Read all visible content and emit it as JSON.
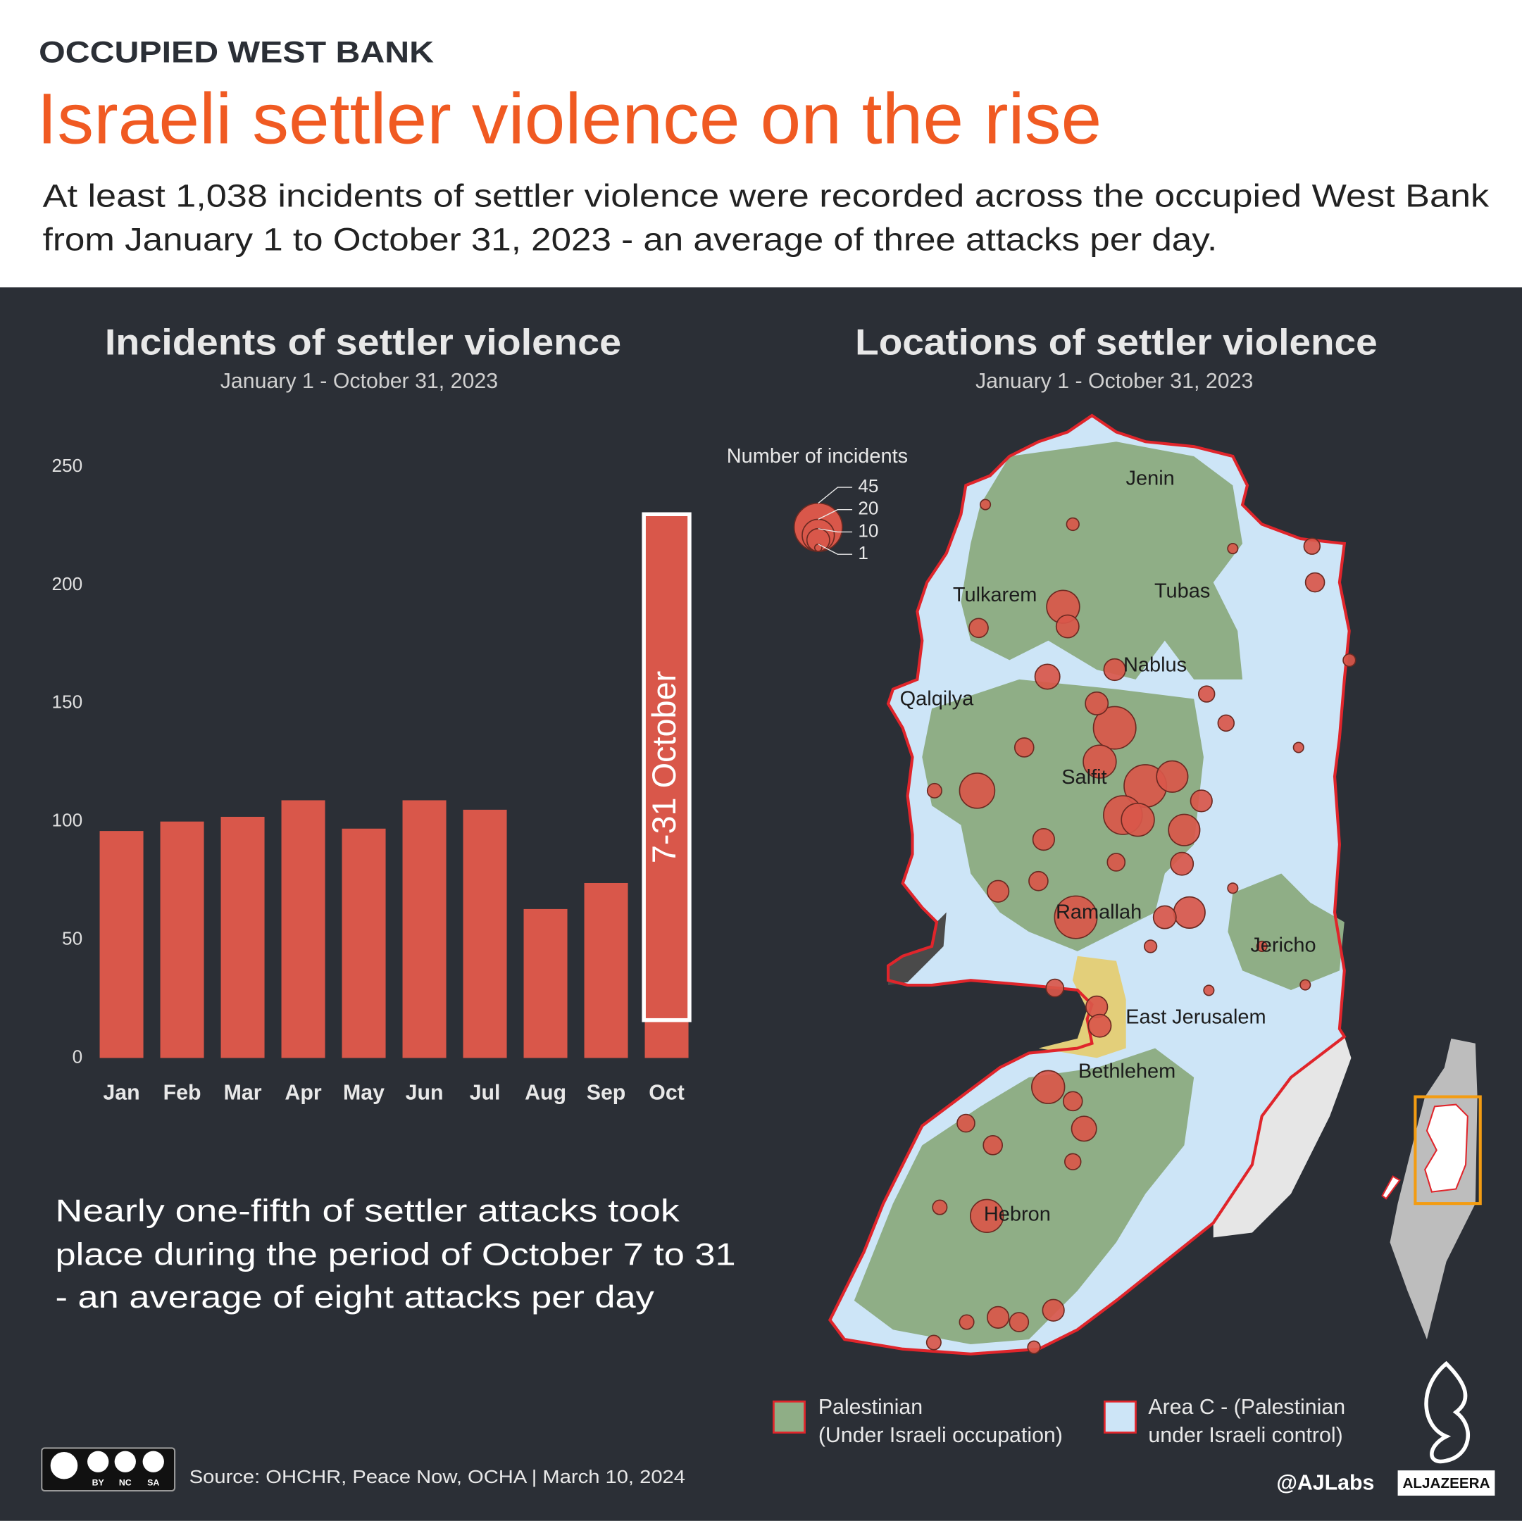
{
  "header": {
    "kicker": "OCCUPIED WEST BANK",
    "title": "Israeli settler violence on the rise",
    "subtitle": [
      "At least 1,038 incidents of settler violence were recorded across the occupied West Bank",
      "from January 1 to October 31, 2023 - an average of three attacks per day."
    ]
  },
  "chart_data": [
    {
      "type": "bar",
      "title": "Incidents of settler violence",
      "subtitle": "January 1 - October 31,  2023",
      "categories": [
        "Jan",
        "Feb",
        "Mar",
        "Apr",
        "May",
        "Jun",
        "Jul",
        "Aug",
        "Sep",
        "Oct"
      ],
      "values": [
        96,
        100,
        102,
        109,
        97,
        109,
        105,
        63,
        74,
        230
      ],
      "color": "#d9574a",
      "ylim": [
        0,
        250
      ],
      "yticks": [
        0,
        50,
        100,
        150,
        200,
        250
      ],
      "grid": false,
      "annotation": {
        "text": "7-31 October",
        "range": [
          16,
          230
        ]
      }
    },
    {
      "type": "map",
      "title": "Locations of settler violence",
      "subtitle": "January 1 - October 31,  2023",
      "color": "#d9574a",
      "size_legend": {
        "title": "Number of incidents",
        "values": [
          45,
          20,
          10,
          1
        ]
      },
      "cities": [
        "Jenin",
        "Tubas",
        "Tulkarem",
        "Nablus",
        "Qalqilya",
        "Salfit",
        "Ramallah",
        "Jericho",
        "East Jerusalem",
        "Bethlehem",
        "Hebron"
      ],
      "bubbles": [
        {
          "lon": 35.261,
          "lat": 32.159,
          "value": 35
        },
        {
          "lon": 35.241,
          "lat": 32.116,
          "value": 21
        },
        {
          "lon": 35.192,
          "lat": 32.313,
          "value": 21
        },
        {
          "lon": 35.198,
          "lat": 32.288,
          "value": 10
        },
        {
          "lon": 35.077,
          "lat": 32.079,
          "value": 24
        },
        {
          "lon": 35.302,
          "lat": 32.085,
          "value": 35
        },
        {
          "lon": 35.338,
          "lat": 32.097,
          "value": 19
        },
        {
          "lon": 35.272,
          "lat": 32.048,
          "value": 29
        },
        {
          "lon": 35.292,
          "lat": 32.042,
          "value": 21
        },
        {
          "lon": 35.354,
          "lat": 32.029,
          "value": 19
        },
        {
          "lon": 35.237,
          "lat": 32.19,
          "value": 10
        },
        {
          "lon": 35.261,
          "lat": 32.233,
          "value": 9
        },
        {
          "lon": 35.171,
          "lat": 32.224,
          "value": 12
        },
        {
          "lon": 35.209,
          "lat": 31.918,
          "value": 35
        },
        {
          "lon": 35.361,
          "lat": 31.924,
          "value": 19
        },
        {
          "lon": 35.328,
          "lat": 31.918,
          "value": 10
        },
        {
          "lon": 35.166,
          "lat": 32.017,
          "value": 9
        },
        {
          "lon": 35.159,
          "lat": 31.964,
          "value": 7
        },
        {
          "lon": 35.105,
          "lat": 31.951,
          "value": 9
        },
        {
          "lon": 35.14,
          "lat": 32.134,
          "value": 7
        },
        {
          "lon": 35.351,
          "lat": 31.986,
          "value": 10
        },
        {
          "lon": 35.377,
          "lat": 32.066,
          "value": 9
        },
        {
          "lon": 35.237,
          "lat": 31.804,
          "value": 9
        },
        {
          "lon": 35.241,
          "lat": 31.78,
          "value": 10
        },
        {
          "lon": 35.172,
          "lat": 31.702,
          "value": 21
        },
        {
          "lon": 35.22,
          "lat": 31.649,
          "value": 12
        },
        {
          "lon": 35.09,
          "lat": 31.538,
          "value": 21
        },
        {
          "lon": 35.098,
          "lat": 31.628,
          "value": 7
        },
        {
          "lon": 35.105,
          "lat": 31.409,
          "value": 9
        },
        {
          "lon": 35.133,
          "lat": 31.403,
          "value": 7
        },
        {
          "lon": 35.179,
          "lat": 31.418,
          "value": 9
        },
        {
          "lon": 35.079,
          "lat": 32.286,
          "value": 7
        },
        {
          "lon": 35.263,
          "lat": 31.988,
          "value": 6
        },
        {
          "lon": 35.41,
          "lat": 32.165,
          "value": 5
        },
        {
          "lon": 35.384,
          "lat": 32.202,
          "value": 5
        },
        {
          "lon": 35.529,
          "lat": 32.344,
          "value": 7
        },
        {
          "lon": 35.525,
          "lat": 32.39,
          "value": 5
        },
        {
          "lon": 35.181,
          "lat": 31.828,
          "value": 6
        },
        {
          "lon": 35.205,
          "lat": 31.684,
          "value": 7
        },
        {
          "lon": 35.062,
          "lat": 31.656,
          "value": 6
        },
        {
          "lon": 35.205,
          "lat": 31.607,
          "value": 5
        },
        {
          "lon": 35.027,
          "lat": 31.549,
          "value": 4
        },
        {
          "lon": 35.019,
          "lat": 31.377,
          "value": 4
        },
        {
          "lon": 35.063,
          "lat": 31.403,
          "value": 4
        },
        {
          "lon": 35.153,
          "lat": 31.371,
          "value": 3
        },
        {
          "lon": 35.419,
          "lat": 32.387,
          "value": 2
        },
        {
          "lon": 35.458,
          "lat": 31.881,
          "value": 2
        },
        {
          "lon": 35.516,
          "lat": 31.832,
          "value": 2
        },
        {
          "lon": 35.387,
          "lat": 31.825,
          "value": 2
        },
        {
          "lon": 35.419,
          "lat": 31.955,
          "value": 2
        },
        {
          "lon": 35.575,
          "lat": 32.245,
          "value": 3
        },
        {
          "lon": 35.507,
          "lat": 32.134,
          "value": 2
        },
        {
          "lon": 35.088,
          "lat": 32.443,
          "value": 2
        },
        {
          "lon": 35.205,
          "lat": 32.418,
          "value": 3
        },
        {
          "lon": 35.02,
          "lat": 32.079,
          "value": 4
        },
        {
          "lon": 35.309,
          "lat": 31.881,
          "value": 3
        }
      ],
      "area_legend": [
        {
          "name": "palestinian",
          "color": "#8fae86",
          "lines": [
            "Palestinian",
            "(Under Israeli occupation)"
          ]
        },
        {
          "name": "area-c",
          "color": "#cde5f7",
          "lines": [
            "Area C - (Palestinian",
            "under Israeli control)"
          ]
        }
      ]
    }
  ],
  "note": [
    "Nearly one-fifth of settler attacks took",
    "place during the period of October 7 to 31",
    "- an average of eight attacks per day"
  ],
  "footer": {
    "license": [
      "BY",
      "NC",
      "SA"
    ],
    "source": "Source:  OHCHR, Peace Now, OCHA  |  March 10, 2024",
    "handle": "@AJLabs",
    "brand": "ALJAZEERA"
  }
}
